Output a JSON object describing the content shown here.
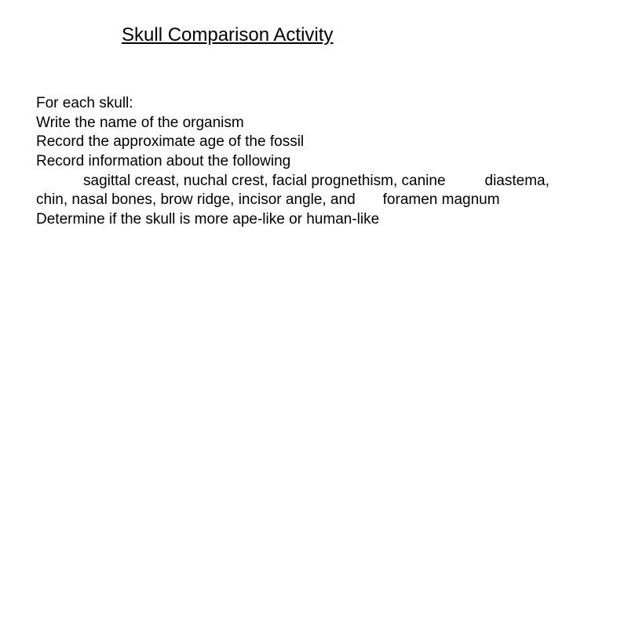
{
  "title": "Skull Comparison Activity",
  "body": {
    "intro": "For each skull:",
    "line1": "Write the name of the organism",
    "line2": "Record the approximate age of the fossil",
    "line3": "Record information about the following",
    "line4a": "sagittal creast, nuchal crest, facial prognethism, canine",
    "line4b": "diastema,",
    "line5a": "chin, nasal bones, brow ridge, incisor angle, and",
    "line5b": "foramen magnum",
    "line6": "Determine if the skull is more ape-like or human-like"
  },
  "style": {
    "background_color": "#ffffff",
    "text_color": "#000000",
    "title_fontsize": 24,
    "body_fontsize": 19,
    "font_family": "Arial"
  }
}
